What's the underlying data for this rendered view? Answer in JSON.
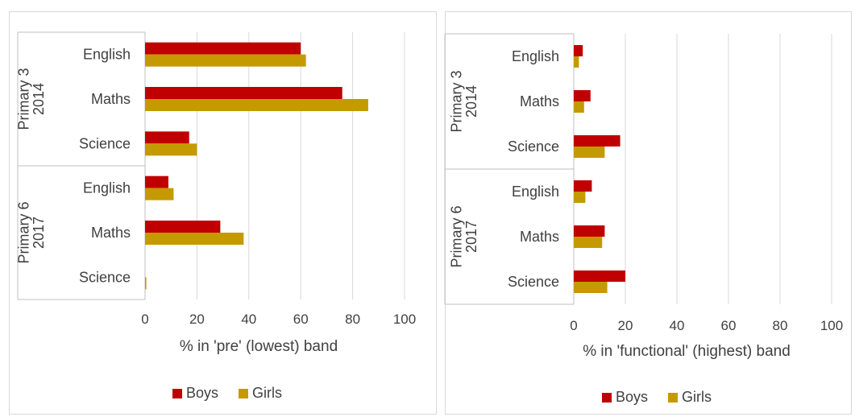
{
  "colors": {
    "boys": "#C00000",
    "girls": "#C49A00",
    "grid": "#D9D9D9",
    "axis": "#BFBFBF",
    "text": "#404040"
  },
  "chart_data": [
    {
      "type": "bar",
      "orientation": "horizontal",
      "title": "",
      "xlabel": "% in 'pre' (lowest) band",
      "xlim": [
        0,
        100
      ],
      "xticks": [
        "0",
        "20",
        "40",
        "60",
        "80",
        "100"
      ],
      "grid": true,
      "legend": "bottom",
      "groups": [
        {
          "label": "Primary 3 2014",
          "line1": "Primary 3",
          "line2": "2014",
          "categories": [
            "English",
            "Maths",
            "Science"
          ]
        },
        {
          "label": "Primary 6 2017",
          "line1": "Primary 6",
          "line2": "2017",
          "categories": [
            "English",
            "Maths",
            "Science"
          ]
        }
      ],
      "series": [
        {
          "name": "Boys",
          "values": [
            60,
            76,
            17,
            9,
            29,
            0
          ]
        },
        {
          "name": "Girls",
          "values": [
            62,
            86,
            20,
            11,
            38,
            0.5
          ]
        }
      ]
    },
    {
      "type": "bar",
      "orientation": "horizontal",
      "title": "",
      "xlabel": "% in 'functional' (highest) band",
      "xlim": [
        0,
        100
      ],
      "xticks": [
        "0",
        "20",
        "40",
        "60",
        "80",
        "100"
      ],
      "grid": true,
      "legend": "bottom",
      "groups": [
        {
          "label": "Primary 3 2014",
          "line1": "Primary 3",
          "line2": "2014",
          "categories": [
            "English",
            "Maths",
            "Science"
          ]
        },
        {
          "label": "Primary 6 2017",
          "line1": "Primary 6",
          "line2": "2017",
          "categories": [
            "English",
            "Maths",
            "Science"
          ]
        }
      ],
      "series": [
        {
          "name": "Boys",
          "values": [
            3.5,
            6.5,
            18,
            7,
            12,
            20
          ]
        },
        {
          "name": "Girls",
          "values": [
            2,
            4,
            12,
            4.5,
            11,
            13
          ]
        }
      ]
    }
  ]
}
